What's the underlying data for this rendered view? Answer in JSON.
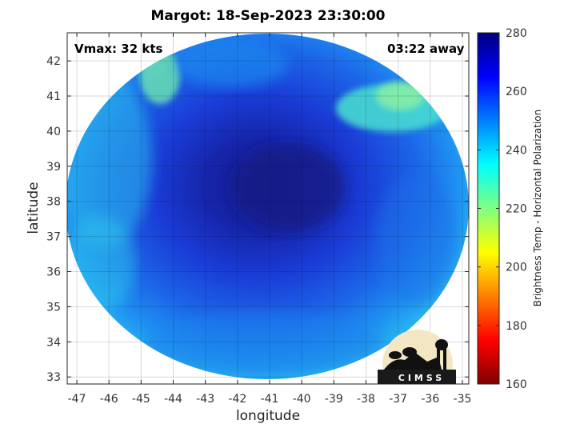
{
  "title": "Margot: 18-Sep-2023 23:30:00",
  "annotations": {
    "vmax": "Vmax: 32 kts",
    "time_away": "03:22 away"
  },
  "logo": {
    "text": "CIMSS"
  },
  "chart_data": {
    "type": "heatmap",
    "title": "Margot: 18-Sep-2023 23:30:00",
    "xlabel": "longitude",
    "ylabel": "latitude",
    "xlim": [
      -47.3,
      -34.8
    ],
    "ylim": [
      32.8,
      42.8
    ],
    "x_ticks": [
      -47,
      -46,
      -45,
      -44,
      -43,
      -42,
      -41,
      -40,
      -39,
      -38,
      -37,
      -36,
      -35
    ],
    "y_ticks": [
      33,
      34,
      35,
      36,
      37,
      38,
      39,
      40,
      41,
      42
    ],
    "x_tick_labels": [
      "-47",
      "-46",
      "-45",
      "-44",
      "-43",
      "-42",
      "-41",
      "-40",
      "-39",
      "-38",
      "-37",
      "-36",
      "-35"
    ],
    "y_tick_labels": [
      "33",
      "34",
      "35",
      "36",
      "37",
      "38",
      "39",
      "40",
      "41",
      "42"
    ],
    "grid": true,
    "colorbar": {
      "label": "Brightness Temp - Horizontal Polarization",
      "range": [
        160,
        280
      ],
      "ticks": [
        160,
        180,
        200,
        220,
        240,
        260,
        280
      ],
      "tick_labels": [
        "160",
        "180",
        "200",
        "220",
        "240",
        "260",
        "280"
      ],
      "colormap": "jet"
    },
    "colors": {
      "core": "#14209c",
      "mid": "#1a3cd8",
      "outer": "#1c8ef0",
      "edge": "#2ad2e8",
      "warm_patch": "#7ef0a8"
    }
  }
}
